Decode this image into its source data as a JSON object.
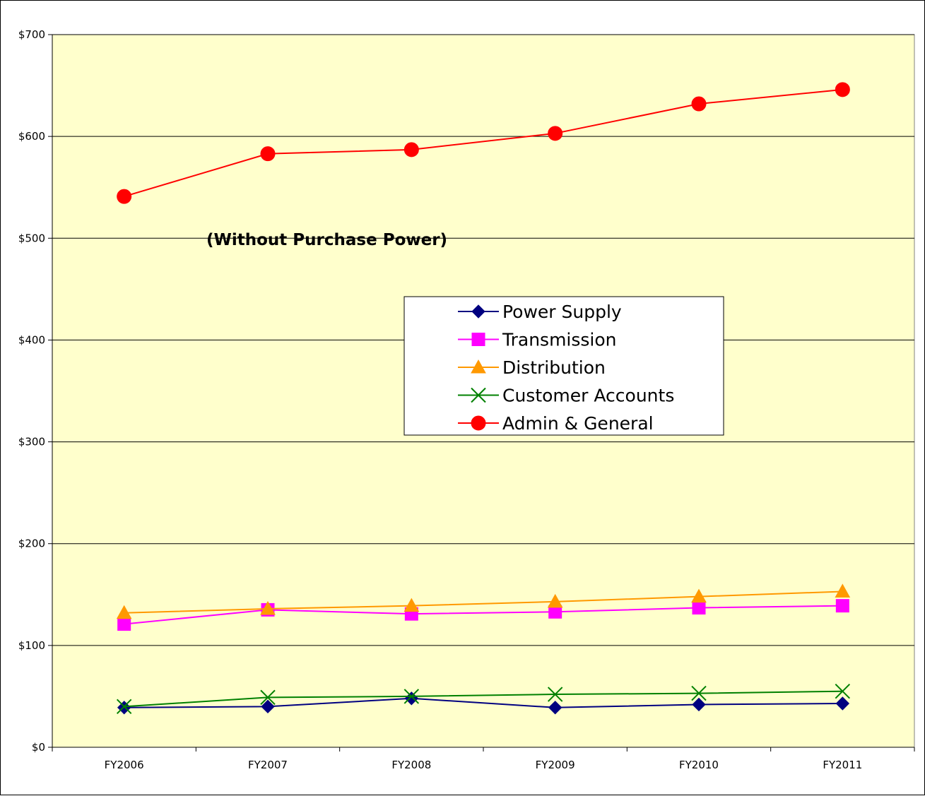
{
  "chart_data": {
    "type": "line",
    "title": "",
    "annotation": "(Without Purchase Power)",
    "xlabel": "",
    "ylabel": "",
    "categories": [
      "FY2006",
      "FY2007",
      "FY2008",
      "FY2009",
      "FY2010",
      "FY2011"
    ],
    "ylim": [
      0,
      700
    ],
    "yticks": [
      0,
      100,
      200,
      300,
      400,
      500,
      600,
      700
    ],
    "ytick_labels": [
      "$0",
      "$100",
      "$200",
      "$300",
      "$400",
      "$500",
      "$600",
      "$700"
    ],
    "grid": true,
    "legend_position": "center-right",
    "plot_background": "#FFFFCC",
    "series": [
      {
        "name": "Power Supply",
        "color": "#000080",
        "marker": "diamond",
        "values": [
          39,
          40,
          48,
          39,
          42,
          43
        ]
      },
      {
        "name": "Transmission",
        "color": "#FF00FF",
        "marker": "square",
        "values": [
          121,
          135,
          131,
          133,
          137,
          139
        ]
      },
      {
        "name": "Distribution",
        "color": "#FF9900",
        "marker": "triangle",
        "values": [
          132,
          136,
          139,
          143,
          148,
          153
        ]
      },
      {
        "name": "Customer Accounts",
        "color": "#008000",
        "marker": "x",
        "values": [
          40,
          49,
          50,
          52,
          53,
          55
        ]
      },
      {
        "name": "Admin & General",
        "color": "#FF0000",
        "marker": "circle",
        "values": [
          541,
          583,
          587,
          603,
          632,
          646
        ]
      }
    ]
  }
}
